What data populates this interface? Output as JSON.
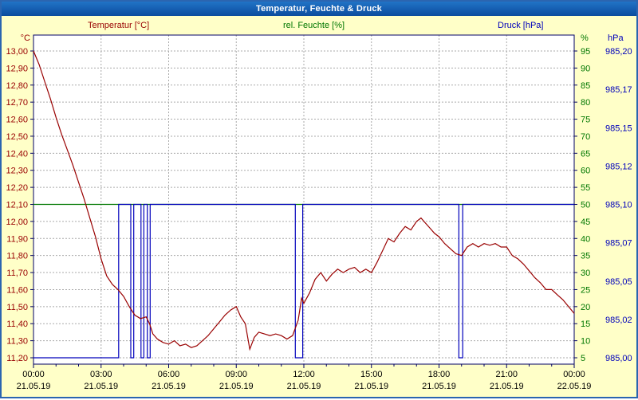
{
  "window": {
    "title": "Temperatur, Feuchte & Druck"
  },
  "legend": {
    "temperature": "Temperatur [°C]",
    "humidity": "rel. Feuchte [%]",
    "pressure": "Druck [hPa]"
  },
  "colors": {
    "temperature": "#990000",
    "humidity": "#007700",
    "pressure": "#0000bb",
    "grid": "#aaaaaa",
    "frame": "#000066",
    "background": "#ffffc8",
    "plot_bg": "#ffffff",
    "x_label": "#000000",
    "titlebar_text": "#ffffff"
  },
  "chart_data": {
    "type": "line",
    "title": "Temperatur, Feuchte & Druck",
    "grid": "dashed",
    "x_axis": {
      "range_hours": [
        0,
        24
      ],
      "major_step_hours": 3,
      "minor_step_hours": 1,
      "tick_times": [
        "00:00",
        "03:00",
        "06:00",
        "09:00",
        "12:00",
        "15:00",
        "18:00",
        "21:00",
        "00:00"
      ],
      "tick_dates": [
        "21.05.19",
        "21.05.19",
        "21.05.19",
        "21.05.19",
        "21.05.19",
        "21.05.19",
        "21.05.19",
        "21.05.19",
        "22.05.19"
      ]
    },
    "y_axes": [
      {
        "id": "temperature",
        "unit": "°C",
        "side": "left",
        "min": 11.2,
        "max": 13.0,
        "step": 0.1,
        "tick_labels": [
          "13,00",
          "12,90",
          "12,80",
          "12,70",
          "12,60",
          "12,50",
          "12,40",
          "12,30",
          "12,20",
          "12,10",
          "12,00",
          "11,90",
          "11,80",
          "11,70",
          "11,60",
          "11,50",
          "11,40",
          "11,30",
          "11,20"
        ]
      },
      {
        "id": "humidity",
        "unit": "%",
        "side": "right",
        "min": 5,
        "max": 95,
        "step": 5,
        "tick_labels": [
          "95",
          "90",
          "85",
          "80",
          "75",
          "70",
          "65",
          "60",
          "55",
          "50",
          "45",
          "40",
          "35",
          "30",
          "25",
          "20",
          "15",
          "10",
          "5"
        ]
      },
      {
        "id": "pressure",
        "unit": "hPa",
        "side": "right-outer",
        "min": 985.0,
        "max": 985.2,
        "step": 0.025,
        "tick_labels": [
          "985,20",
          "985,17",
          "985,15",
          "985,12",
          "985,10",
          "985,07",
          "985,05",
          "985,02",
          "985,00"
        ]
      }
    ],
    "series": [
      {
        "name": "rel. Feuchte",
        "axis": "humidity",
        "color": "#007700",
        "interpolation": "linear",
        "points": [
          [
            0,
            50
          ],
          [
            24,
            50
          ]
        ]
      },
      {
        "name": "Druck",
        "axis": "pressure",
        "color": "#0000bb",
        "interpolation": "step",
        "points": [
          [
            0,
            985.0
          ],
          [
            3.78,
            985.1
          ],
          [
            4.32,
            985.0
          ],
          [
            4.45,
            985.1
          ],
          [
            4.77,
            985.0
          ],
          [
            4.9,
            985.1
          ],
          [
            5.05,
            985.0
          ],
          [
            5.18,
            985.1
          ],
          [
            11.62,
            985.0
          ],
          [
            11.95,
            985.1
          ],
          [
            18.88,
            985.0
          ],
          [
            19.05,
            985.1
          ],
          [
            24,
            985.1
          ]
        ]
      },
      {
        "name": "Temperatur",
        "axis": "temperature",
        "color": "#990000",
        "interpolation": "linear",
        "points": [
          [
            0,
            13.0
          ],
          [
            0.25,
            12.92
          ],
          [
            0.5,
            12.82
          ],
          [
            0.75,
            12.72
          ],
          [
            1,
            12.61
          ],
          [
            1.25,
            12.51
          ],
          [
            1.5,
            12.42
          ],
          [
            1.75,
            12.33
          ],
          [
            2,
            12.23
          ],
          [
            2.25,
            12.13
          ],
          [
            2.5,
            12.02
          ],
          [
            2.75,
            11.91
          ],
          [
            3,
            11.78
          ],
          [
            3.25,
            11.68
          ],
          [
            3.5,
            11.63
          ],
          [
            3.75,
            11.6
          ],
          [
            4,
            11.56
          ],
          [
            4.25,
            11.5
          ],
          [
            4.5,
            11.45
          ],
          [
            4.75,
            11.43
          ],
          [
            5,
            11.44
          ],
          [
            5.15,
            11.4
          ],
          [
            5.3,
            11.34
          ],
          [
            5.5,
            11.31
          ],
          [
            5.75,
            11.29
          ],
          [
            6,
            11.28
          ],
          [
            6.25,
            11.3
          ],
          [
            6.5,
            11.27
          ],
          [
            6.75,
            11.28
          ],
          [
            7,
            11.26
          ],
          [
            7.25,
            11.27
          ],
          [
            7.5,
            11.3
          ],
          [
            7.75,
            11.33
          ],
          [
            8,
            11.37
          ],
          [
            8.25,
            11.41
          ],
          [
            8.5,
            11.45
          ],
          [
            8.75,
            11.48
          ],
          [
            9,
            11.5
          ],
          [
            9.2,
            11.44
          ],
          [
            9.4,
            11.4
          ],
          [
            9.6,
            11.25
          ],
          [
            9.8,
            11.32
          ],
          [
            10,
            11.35
          ],
          [
            10.25,
            11.34
          ],
          [
            10.5,
            11.33
          ],
          [
            10.75,
            11.34
          ],
          [
            11,
            11.33
          ],
          [
            11.25,
            11.31
          ],
          [
            11.5,
            11.33
          ],
          [
            11.75,
            11.42
          ],
          [
            11.9,
            11.55
          ],
          [
            12,
            11.52
          ],
          [
            12.25,
            11.58
          ],
          [
            12.5,
            11.66
          ],
          [
            12.75,
            11.7
          ],
          [
            13,
            11.65
          ],
          [
            13.25,
            11.69
          ],
          [
            13.5,
            11.72
          ],
          [
            13.75,
            11.7
          ],
          [
            14,
            11.72
          ],
          [
            14.25,
            11.73
          ],
          [
            14.5,
            11.7
          ],
          [
            14.75,
            11.72
          ],
          [
            15,
            11.7
          ],
          [
            15.25,
            11.76
          ],
          [
            15.5,
            11.83
          ],
          [
            15.75,
            11.9
          ],
          [
            16,
            11.88
          ],
          [
            16.25,
            11.93
          ],
          [
            16.5,
            11.97
          ],
          [
            16.75,
            11.95
          ],
          [
            17,
            12.0
          ],
          [
            17.2,
            12.02
          ],
          [
            17.4,
            11.99
          ],
          [
            17.6,
            11.96
          ],
          [
            17.8,
            11.93
          ],
          [
            18,
            11.91
          ],
          [
            18.25,
            11.87
          ],
          [
            18.5,
            11.84
          ],
          [
            18.75,
            11.81
          ],
          [
            19,
            11.8
          ],
          [
            19.25,
            11.85
          ],
          [
            19.5,
            11.87
          ],
          [
            19.75,
            11.85
          ],
          [
            20,
            11.87
          ],
          [
            20.25,
            11.86
          ],
          [
            20.5,
            11.87
          ],
          [
            20.75,
            11.85
          ],
          [
            21,
            11.85
          ],
          [
            21.25,
            11.8
          ],
          [
            21.5,
            11.78
          ],
          [
            21.75,
            11.75
          ],
          [
            22,
            11.71
          ],
          [
            22.25,
            11.67
          ],
          [
            22.5,
            11.64
          ],
          [
            22.75,
            11.6
          ],
          [
            23,
            11.6
          ],
          [
            23.25,
            11.57
          ],
          [
            23.5,
            11.54
          ],
          [
            23.75,
            11.5
          ],
          [
            24,
            11.46
          ]
        ]
      }
    ]
  }
}
